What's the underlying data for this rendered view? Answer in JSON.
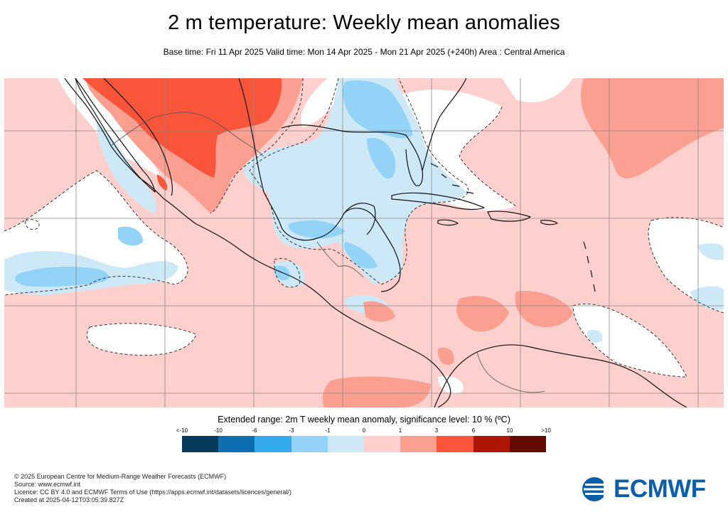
{
  "title": "2 m temperature: Weekly mean anomalies",
  "subtitle": "Base time: Fri 11 Apr 2025 Valid time: Mon 14 Apr 2025 - Mon 21 Apr 2025 (+240h) Area : Central America",
  "legend": {
    "title": "Extended range: 2m T weekly mean anomaly, significance level: 10 % (ºC)",
    "labels": [
      "<-10",
      "-10",
      "-6",
      "-3",
      "-1",
      "0",
      "1",
      "3",
      "6",
      "10",
      ">10"
    ],
    "colors": [
      "#053a5b",
      "#0d6fb0",
      "#34aaec",
      "#93d3f7",
      "#cde9f8",
      "#fdd0cd",
      "#fb9f90",
      "#f9553a",
      "#ad1505",
      "#620c04"
    ]
  },
  "map_colors": {
    "ocean_background": "#fdd0cd",
    "near_zero": "#ffffff",
    "light_cold": "#cde9f8",
    "cold": "#93d3f7",
    "warm": "#fb9f90",
    "hot": "#f9553a"
  },
  "footer": {
    "copyright": "© 2025 European Centre for Medium-Range Weather Forecasts (ECMWF)",
    "source": "Source: www.ecmwf.int",
    "licence": "Licence: CC BY 4.0 and ECMWF Terms of Use (https://apps.ecmwf.int/datasets/licences/general/)",
    "created": "Created at 2025-04-12T03:05:39.827Z"
  },
  "logo": {
    "text": "ECMWF",
    "icon": "ecmwf-logo-icon"
  }
}
